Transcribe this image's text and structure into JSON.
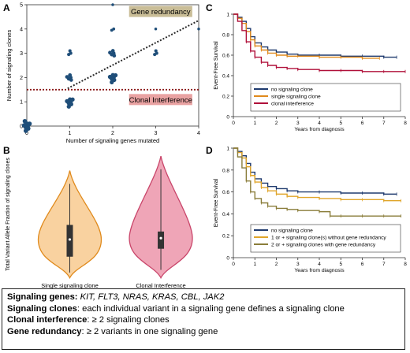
{
  "panels": {
    "A": {
      "letter": "A"
    },
    "B": {
      "letter": "B"
    },
    "C": {
      "letter": "C"
    },
    "D": {
      "letter": "D"
    }
  },
  "chart_data": [
    {
      "id": "A",
      "type": "scatter",
      "xlabel": "Number of signaling genes mutated",
      "ylabel": "Number of signaling clones",
      "xlim": [
        0,
        4
      ],
      "ylim": [
        0,
        5
      ],
      "xticks": [
        0,
        1,
        2,
        3,
        4
      ],
      "yticks": [
        0,
        1,
        2,
        3,
        4,
        5
      ],
      "points": [
        {
          "x": 0,
          "y": 0,
          "size": 8
        },
        {
          "x": 1,
          "y": 1,
          "size": 7
        },
        {
          "x": 1,
          "y": 2,
          "size": 5
        },
        {
          "x": 1,
          "y": 3,
          "size": 3
        },
        {
          "x": 2,
          "y": 2,
          "size": 7
        },
        {
          "x": 2,
          "y": 3,
          "size": 5
        },
        {
          "x": 2,
          "y": 4,
          "size": 2
        },
        {
          "x": 2,
          "y": 5,
          "size": 1
        },
        {
          "x": 3,
          "y": 3,
          "size": 3
        },
        {
          "x": 3,
          "y": 4,
          "size": 1
        },
        {
          "x": 4,
          "y": 4,
          "size": 1
        }
      ],
      "annotations": {
        "gene_redundancy": "Gene redundancy",
        "clonal_interference": "Clonal Interference"
      },
      "colors": {
        "points": "#1f4e79",
        "gene_label_bg": "#c9bd97",
        "clonal_label_bg": "#e9a2a2",
        "redundancy_line": "#2b2b2b",
        "interference_line": "#8b1a1a"
      }
    },
    {
      "id": "B",
      "type": "violin",
      "ylabel": "Total Variant Allele Fraction of signaling clones",
      "categories": [
        "Single signaling clone",
        "Clonal Interference"
      ],
      "ylim": [
        0,
        1
      ],
      "series": [
        {
          "median": 0.31,
          "q1": 0.18,
          "q3": 0.42,
          "min": 0.06,
          "max": 0.73,
          "color": "#f9d2a0",
          "edge": "#e08a1c"
        },
        {
          "median": 0.32,
          "q1": 0.24,
          "q3": 0.37,
          "min": 0.08,
          "max": 0.84,
          "color": "#efa5b7",
          "edge": "#c9456a"
        }
      ]
    },
    {
      "id": "C",
      "type": "line",
      "ylabel": "Event-Free Survival",
      "xlabel": "Years from diagnosis",
      "xlim": [
        0,
        8
      ],
      "ylim": [
        0,
        1
      ],
      "xticks": [
        0,
        1,
        2,
        3,
        4,
        5,
        6,
        7,
        8
      ],
      "yticks": [
        0,
        0.2,
        0.4,
        0.6,
        0.8,
        1.0
      ],
      "series": [
        {
          "name": "no signaling clone",
          "color": "#1f3a6e",
          "x": [
            0,
            0.2,
            0.4,
            0.6,
            0.8,
            1.0,
            1.3,
            1.6,
            2.0,
            2.5,
            3.0,
            4.0,
            5.0,
            6.0,
            7.0,
            7.6
          ],
          "y": [
            1.0,
            0.97,
            0.93,
            0.86,
            0.78,
            0.72,
            0.68,
            0.65,
            0.63,
            0.61,
            0.6,
            0.6,
            0.59,
            0.59,
            0.58,
            0.58
          ]
        },
        {
          "name": "single signaling clone",
          "color": "#e08a1c",
          "x": [
            0,
            0.2,
            0.4,
            0.6,
            0.8,
            1.0,
            1.3,
            1.6,
            2.0,
            2.5,
            3.0,
            4.0,
            5.0,
            6.0,
            6.8
          ],
          "y": [
            1.0,
            0.96,
            0.91,
            0.83,
            0.75,
            0.69,
            0.65,
            0.62,
            0.6,
            0.59,
            0.59,
            0.58,
            0.58,
            0.57,
            0.57
          ]
        },
        {
          "name": "clonal interference",
          "color": "#b0103a",
          "x": [
            0,
            0.2,
            0.4,
            0.6,
            0.8,
            1.0,
            1.3,
            1.6,
            2.0,
            2.5,
            3.0,
            4.0,
            5.0,
            6.0,
            7.0,
            8.0
          ],
          "y": [
            1.0,
            0.93,
            0.84,
            0.73,
            0.64,
            0.58,
            0.53,
            0.5,
            0.48,
            0.47,
            0.46,
            0.45,
            0.45,
            0.44,
            0.44,
            0.44
          ]
        }
      ]
    },
    {
      "id": "D",
      "type": "line",
      "ylabel": "Event-Free Survival",
      "xlabel": "Years from diagnosis",
      "xlim": [
        0,
        8
      ],
      "ylim": [
        0,
        1
      ],
      "xticks": [
        0,
        1,
        2,
        3,
        4,
        5,
        6,
        7,
        8
      ],
      "yticks": [
        0,
        0.2,
        0.4,
        0.6,
        0.8,
        1.0
      ],
      "series": [
        {
          "name": "no signaling clone",
          "color": "#1f3a6e",
          "x": [
            0,
            0.2,
            0.4,
            0.6,
            0.8,
            1.0,
            1.3,
            1.6,
            2.0,
            2.5,
            3.0,
            4.0,
            5.0,
            6.0,
            7.0,
            7.6
          ],
          "y": [
            1.0,
            0.97,
            0.93,
            0.86,
            0.78,
            0.72,
            0.68,
            0.65,
            0.63,
            0.61,
            0.6,
            0.6,
            0.59,
            0.59,
            0.58,
            0.58
          ]
        },
        {
          "name": "1 or + signaling clone(s) without gene redundancy",
          "color": "#e0a52a",
          "x": [
            0,
            0.2,
            0.4,
            0.6,
            0.8,
            1.0,
            1.3,
            1.6,
            2.0,
            2.5,
            3.0,
            4.0,
            5.0,
            6.0,
            7.0,
            7.8
          ],
          "y": [
            1.0,
            0.96,
            0.91,
            0.83,
            0.75,
            0.69,
            0.64,
            0.61,
            0.58,
            0.56,
            0.55,
            0.54,
            0.53,
            0.53,
            0.52,
            0.52
          ]
        },
        {
          "name": "2 or + signaling clones with gene redundancy",
          "color": "#8a7d3a",
          "x": [
            0,
            0.2,
            0.4,
            0.6,
            0.8,
            1.0,
            1.3,
            1.6,
            2.0,
            2.5,
            3.0,
            4.0,
            4.5,
            5.0,
            6.0,
            7.0,
            7.8
          ],
          "y": [
            1.0,
            0.92,
            0.82,
            0.7,
            0.6,
            0.54,
            0.5,
            0.47,
            0.45,
            0.44,
            0.43,
            0.42,
            0.38,
            0.38,
            0.38,
            0.38,
            0.38
          ]
        }
      ]
    }
  ],
  "caption": {
    "signaling_genes_key": "Signaling genes",
    "signaling_genes_value": "KIT, FLT3, NRAS, KRAS, CBL, JAK2",
    "signaling_clones_key": "Signaling clones",
    "signaling_clones_value": ": each individual variant in a signaling gene defines a signaling clone",
    "clonal_interference_key": "Clonal interference",
    "clonal_interference_value": ": ≥ 2 signaling clones",
    "gene_redundancy_key": "Gene redundancy",
    "gene_redundancy_value": ": ≥ 2 variants in one signaling gene"
  }
}
